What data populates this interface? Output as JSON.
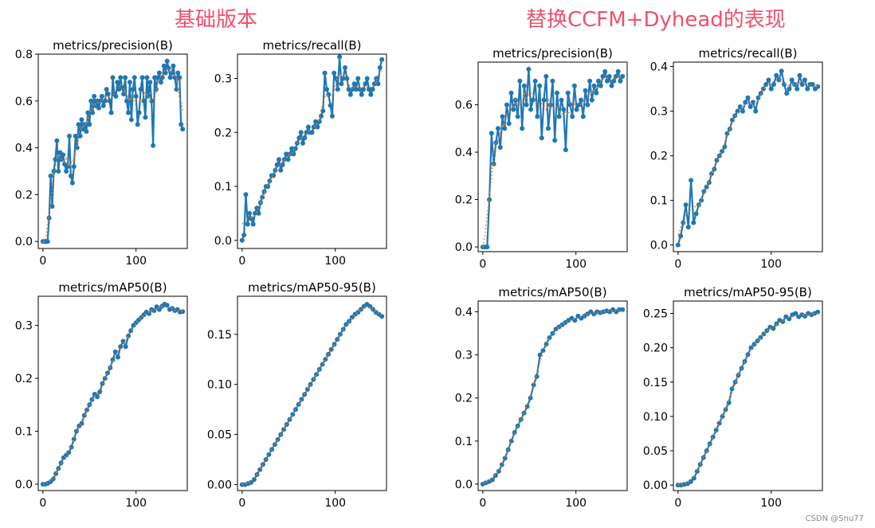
{
  "titles": {
    "left": "基础版本",
    "right": "替换CCFM+Dyhead的表现"
  },
  "watermark": "CSDN @Snu77",
  "colors": {
    "title": "#f0506e",
    "series": "#1f77b4",
    "smooth": "#ff7f0e",
    "axis": "#000000"
  },
  "chart_data": [
    {
      "id": "L1",
      "group": "基础版本",
      "type": "line",
      "title": "metrics/precision(B)",
      "xlim": [
        -5,
        155
      ],
      "ylim": [
        -0.03,
        0.8
      ],
      "xticks": [
        0,
        100
      ],
      "yticks": [
        0.0,
        0.2,
        0.4,
        0.6,
        0.8
      ],
      "ytick_labels": [
        "0.0",
        "0.2",
        "0.4",
        "0.6",
        "0.8"
      ],
      "xtick_labels": [
        "0",
        "100"
      ],
      "series": [
        {
          "x": [
            0,
            150
          ],
          "approx_values": [
            0,
            0,
            0,
            0,
            0.1,
            0.28,
            0.15,
            0.3,
            0.35,
            0.43,
            0.3,
            0.38,
            0.35,
            0.37,
            0.33,
            0.3,
            0.32,
            0.45,
            0.28,
            0.25,
            0.32,
            0.45,
            0.4,
            0.5,
            0.45,
            0.52,
            0.48,
            0.5,
            0.47,
            0.55,
            0.5,
            0.6,
            0.55,
            0.62,
            0.58,
            0.6,
            0.57,
            0.6,
            0.62,
            0.58,
            0.6,
            0.65,
            0.63,
            0.6,
            0.55,
            0.7,
            0.63,
            0.62,
            0.68,
            0.65,
            0.7,
            0.66,
            0.63,
            0.7,
            0.6,
            0.55,
            0.68,
            0.52,
            0.65,
            0.7,
            0.62,
            0.5,
            0.55,
            0.65,
            0.7,
            0.6,
            0.53,
            0.7,
            0.62,
            0.68,
            0.6,
            0.41,
            0.7,
            0.65,
            0.7,
            0.72,
            0.68,
            0.7,
            0.75,
            0.72,
            0.77,
            0.74,
            0.7,
            0.72,
            0.75,
            0.7,
            0.65,
            0.72,
            0.7,
            0.5,
            0.48
          ]
        }
      ]
    },
    {
      "id": "L2",
      "group": "基础版本",
      "type": "line",
      "title": "metrics/recall(B)",
      "xlim": [
        -5,
        155
      ],
      "ylim": [
        -0.015,
        0.345
      ],
      "xticks": [
        0,
        100
      ],
      "yticks": [
        0.0,
        0.1,
        0.2,
        0.3
      ],
      "ytick_labels": [
        "0.0",
        "0.1",
        "0.2",
        "0.3"
      ],
      "xtick_labels": [
        "0",
        "100"
      ],
      "series": [
        {
          "x": [
            0,
            150
          ],
          "approx_values": [
            0,
            0.01,
            0.085,
            0.03,
            0.05,
            0.04,
            0.03,
            0.05,
            0.06,
            0.05,
            0.07,
            0.08,
            0.09,
            0.1,
            0.1,
            0.11,
            0.12,
            0.12,
            0.13,
            0.14,
            0.15,
            0.13,
            0.14,
            0.15,
            0.16,
            0.15,
            0.16,
            0.17,
            0.16,
            0.17,
            0.18,
            0.19,
            0.2,
            0.18,
            0.19,
            0.2,
            0.21,
            0.2,
            0.2,
            0.21,
            0.22,
            0.21,
            0.22,
            0.23,
            0.24,
            0.31,
            0.28,
            0.27,
            0.25,
            0.23,
            0.31,
            0.3,
            0.28,
            0.34,
            0.29,
            0.3,
            0.32,
            0.3,
            0.28,
            0.27,
            0.28,
            0.29,
            0.28,
            0.3,
            0.28,
            0.27,
            0.28,
            0.29,
            0.3,
            0.28,
            0.27,
            0.28,
            0.29,
            0.3,
            0.29,
            0.32,
            0.335
          ]
        }
      ]
    },
    {
      "id": "L3",
      "group": "基础版本",
      "type": "line",
      "title": "metrics/mAP50(B)",
      "xlim": [
        -5,
        155
      ],
      "ylim": [
        -0.012,
        0.355
      ],
      "xticks": [
        0,
        100
      ],
      "yticks": [
        0.0,
        0.1,
        0.2,
        0.3
      ],
      "ytick_labels": [
        "0.0",
        "0.1",
        "0.2",
        "0.3"
      ],
      "xtick_labels": [
        "0",
        "100"
      ],
      "series": [
        {
          "x": [
            0,
            150
          ],
          "approx_values": [
            0,
            0,
            0.002,
            0.005,
            0.01,
            0.02,
            0.03,
            0.04,
            0.05,
            0.055,
            0.06,
            0.07,
            0.085,
            0.1,
            0.11,
            0.115,
            0.13,
            0.14,
            0.15,
            0.16,
            0.17,
            0.165,
            0.175,
            0.19,
            0.2,
            0.21,
            0.22,
            0.235,
            0.25,
            0.24,
            0.26,
            0.27,
            0.26,
            0.28,
            0.29,
            0.3,
            0.305,
            0.31,
            0.315,
            0.32,
            0.325,
            0.322,
            0.33,
            0.328,
            0.335,
            0.33,
            0.336,
            0.34,
            0.338,
            0.33,
            0.332,
            0.328,
            0.33,
            0.325,
            0.326
          ]
        }
      ]
    },
    {
      "id": "L4",
      "group": "基础版本",
      "type": "line",
      "title": "metrics/mAP50-95(B)",
      "xlim": [
        -5,
        155
      ],
      "ylim": [
        -0.006,
        0.188
      ],
      "xticks": [
        0,
        100
      ],
      "yticks": [
        0.0,
        0.05,
        0.1,
        0.15
      ],
      "ytick_labels": [
        "0.00",
        "0.05",
        "0.10",
        "0.15"
      ],
      "xtick_labels": [
        "0",
        "100"
      ],
      "series": [
        {
          "x": [
            0,
            150
          ],
          "approx_values": [
            0,
            0,
            0.001,
            0.002,
            0.005,
            0.01,
            0.015,
            0.02,
            0.025,
            0.03,
            0.035,
            0.04,
            0.045,
            0.05,
            0.055,
            0.06,
            0.065,
            0.07,
            0.075,
            0.08,
            0.085,
            0.09,
            0.095,
            0.1,
            0.105,
            0.11,
            0.115,
            0.12,
            0.125,
            0.13,
            0.135,
            0.14,
            0.145,
            0.15,
            0.155,
            0.16,
            0.163,
            0.167,
            0.17,
            0.172,
            0.175,
            0.178,
            0.18,
            0.178,
            0.175,
            0.172,
            0.17,
            0.168
          ]
        }
      ]
    },
    {
      "id": "R1",
      "group": "替换CCFM+Dyhead的表现",
      "type": "line",
      "title": "metrics/precision(B)",
      "xlim": [
        -5,
        155
      ],
      "ylim": [
        -0.02,
        0.78
      ],
      "xticks": [
        0,
        100
      ],
      "yticks": [
        0.0,
        0.2,
        0.4,
        0.6
      ],
      "ytick_labels": [
        "0.0",
        "0.2",
        "0.4",
        "0.6"
      ],
      "xtick_labels": [
        "0",
        "100"
      ],
      "series": [
        {
          "x": [
            0,
            150
          ],
          "approx_values": [
            0,
            0,
            0,
            0.2,
            0.48,
            0.35,
            0.44,
            0.5,
            0.42,
            0.55,
            0.5,
            0.6,
            0.52,
            0.65,
            0.58,
            0.62,
            0.55,
            0.7,
            0.5,
            0.68,
            0.6,
            0.75,
            0.58,
            0.62,
            0.7,
            0.55,
            0.68,
            0.46,
            0.62,
            0.72,
            0.5,
            0.6,
            0.7,
            0.45,
            0.65,
            0.55,
            0.62,
            0.58,
            0.41,
            0.65,
            0.6,
            0.55,
            0.68,
            0.58,
            0.6,
            0.62,
            0.55,
            0.66,
            0.6,
            0.7,
            0.62,
            0.68,
            0.65,
            0.7,
            0.68,
            0.72,
            0.74,
            0.7,
            0.72,
            0.68,
            0.7,
            0.72,
            0.74,
            0.7,
            0.72
          ]
        }
      ]
    },
    {
      "id": "R2",
      "group": "替换CCFM+Dyhead的表现",
      "type": "line",
      "title": "metrics/recall(B)",
      "xlim": [
        -5,
        155
      ],
      "ylim": [
        -0.015,
        0.41
      ],
      "xticks": [
        0,
        100
      ],
      "yticks": [
        0.0,
        0.1,
        0.2,
        0.3,
        0.4
      ],
      "ytick_labels": [
        "0.0",
        "0.1",
        "0.2",
        "0.3",
        "0.4"
      ],
      "xtick_labels": [
        "0",
        "100"
      ],
      "series": [
        {
          "x": [
            0,
            150
          ],
          "approx_values": [
            0,
            0.02,
            0.05,
            0.09,
            0.04,
            0.145,
            0.05,
            0.07,
            0.09,
            0.1,
            0.12,
            0.13,
            0.14,
            0.16,
            0.17,
            0.19,
            0.2,
            0.21,
            0.22,
            0.25,
            0.26,
            0.28,
            0.29,
            0.3,
            0.31,
            0.3,
            0.32,
            0.33,
            0.31,
            0.32,
            0.3,
            0.33,
            0.34,
            0.35,
            0.36,
            0.37,
            0.35,
            0.36,
            0.38,
            0.37,
            0.39,
            0.36,
            0.34,
            0.35,
            0.37,
            0.36,
            0.35,
            0.38,
            0.36,
            0.37,
            0.35,
            0.36,
            0.36,
            0.35,
            0.355
          ]
        }
      ]
    },
    {
      "id": "R3",
      "group": "替换CCFM+Dyhead的表现",
      "type": "line",
      "title": "metrics/mAP50(B)",
      "xlim": [
        -5,
        155
      ],
      "ylim": [
        -0.015,
        0.425
      ],
      "xticks": [
        0,
        100
      ],
      "yticks": [
        0.0,
        0.1,
        0.2,
        0.3,
        0.4
      ],
      "ytick_labels": [
        "0.0",
        "0.1",
        "0.2",
        "0.3",
        "0.4"
      ],
      "xtick_labels": [
        "0",
        "100"
      ],
      "series": [
        {
          "x": [
            0,
            150
          ],
          "approx_values": [
            0,
            0.003,
            0.006,
            0.01,
            0.02,
            0.03,
            0.045,
            0.06,
            0.08,
            0.1,
            0.12,
            0.135,
            0.15,
            0.165,
            0.18,
            0.2,
            0.23,
            0.25,
            0.3,
            0.31,
            0.325,
            0.34,
            0.35,
            0.36,
            0.365,
            0.37,
            0.375,
            0.38,
            0.385,
            0.38,
            0.39,
            0.385,
            0.39,
            0.395,
            0.4,
            0.395,
            0.4,
            0.398,
            0.4,
            0.402,
            0.4,
            0.405,
            0.4,
            0.405,
            0.405
          ]
        }
      ]
    },
    {
      "id": "R4",
      "group": "替换CCFM+Dyhead的表现",
      "type": "line",
      "title": "metrics/mAP50-95(B)",
      "xlim": [
        -5,
        155
      ],
      "ylim": [
        -0.008,
        0.268
      ],
      "xticks": [
        0,
        100
      ],
      "yticks": [
        0.0,
        0.05,
        0.1,
        0.15,
        0.2,
        0.25
      ],
      "ytick_labels": [
        "0.00",
        "0.05",
        "0.10",
        "0.15",
        "0.20",
        "0.25"
      ],
      "xtick_labels": [
        "0",
        "100"
      ],
      "series": [
        {
          "x": [
            0,
            150
          ],
          "approx_values": [
            0,
            0,
            0.001,
            0.002,
            0.005,
            0.01,
            0.02,
            0.03,
            0.04,
            0.05,
            0.06,
            0.07,
            0.08,
            0.09,
            0.1,
            0.11,
            0.12,
            0.14,
            0.15,
            0.16,
            0.17,
            0.18,
            0.19,
            0.2,
            0.205,
            0.21,
            0.215,
            0.22,
            0.225,
            0.23,
            0.228,
            0.235,
            0.24,
            0.238,
            0.245,
            0.242,
            0.248,
            0.25,
            0.245,
            0.248,
            0.246,
            0.25,
            0.248,
            0.25,
            0.252
          ]
        }
      ]
    }
  ]
}
